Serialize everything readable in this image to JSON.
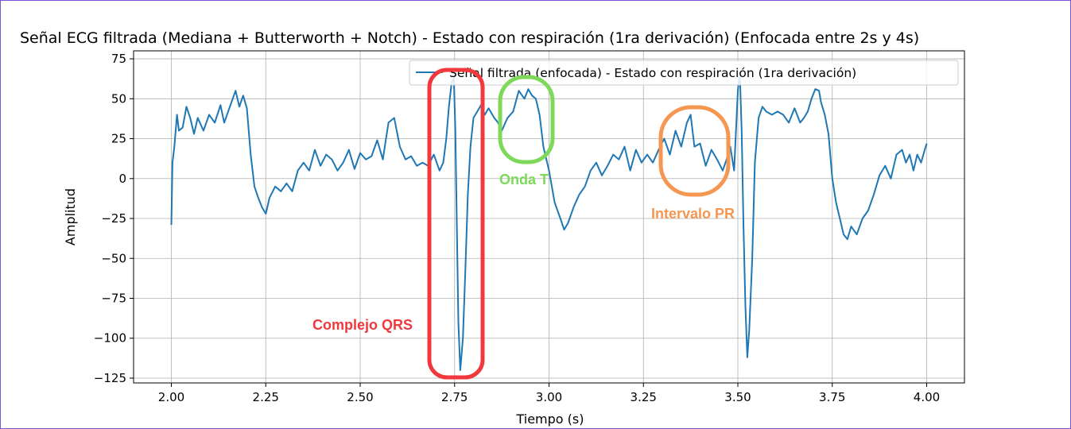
{
  "chart_data": {
    "type": "line",
    "title": "Señal ECG filtrada (Mediana + Butterworth + Notch) - Estado con respiración (1ra derivación) (Enfocada entre 2s y 4s)",
    "xlabel": "Tiempo (s)",
    "ylabel": "Amplitud",
    "xlim": [
      1.9,
      4.1
    ],
    "ylim": [
      -128,
      80
    ],
    "xticks": [
      "2.00",
      "2.25",
      "2.50",
      "2.75",
      "3.00",
      "3.25",
      "3.50",
      "3.75",
      "4.00"
    ],
    "yticks": [
      "75",
      "50",
      "25",
      "0",
      "−25",
      "−50",
      "−75",
      "−100",
      "−125"
    ],
    "grid": true,
    "legend_position": "top-right",
    "series": [
      {
        "name": "Señal filtrada (enfocada) - Estado con respiración (1ra derivación)",
        "color": "#1f77b4",
        "points": [
          [
            2.0,
            -29
          ],
          [
            2.003,
            10
          ],
          [
            2.008,
            20
          ],
          [
            2.015,
            40
          ],
          [
            2.02,
            30
          ],
          [
            2.03,
            32
          ],
          [
            2.04,
            45
          ],
          [
            2.05,
            38
          ],
          [
            2.06,
            28
          ],
          [
            2.07,
            38
          ],
          [
            2.085,
            30
          ],
          [
            2.1,
            40
          ],
          [
            2.115,
            35
          ],
          [
            2.13,
            46
          ],
          [
            2.14,
            35
          ],
          [
            2.155,
            45
          ],
          [
            2.17,
            55
          ],
          [
            2.18,
            45
          ],
          [
            2.19,
            52
          ],
          [
            2.2,
            44
          ],
          [
            2.21,
            15
          ],
          [
            2.22,
            -5
          ],
          [
            2.23,
            -12
          ],
          [
            2.24,
            -18
          ],
          [
            2.25,
            -22
          ],
          [
            2.26,
            -12
          ],
          [
            2.275,
            -5
          ],
          [
            2.29,
            -8
          ],
          [
            2.305,
            -3
          ],
          [
            2.32,
            -8
          ],
          [
            2.335,
            5
          ],
          [
            2.35,
            10
          ],
          [
            2.365,
            5
          ],
          [
            2.38,
            18
          ],
          [
            2.395,
            8
          ],
          [
            2.41,
            15
          ],
          [
            2.425,
            12
          ],
          [
            2.44,
            5
          ],
          [
            2.455,
            10
          ],
          [
            2.47,
            18
          ],
          [
            2.485,
            6
          ],
          [
            2.5,
            16
          ],
          [
            2.515,
            12
          ],
          [
            2.53,
            14
          ],
          [
            2.545,
            24
          ],
          [
            2.56,
            12
          ],
          [
            2.575,
            35
          ],
          [
            2.59,
            38
          ],
          [
            2.605,
            20
          ],
          [
            2.62,
            12
          ],
          [
            2.635,
            14
          ],
          [
            2.65,
            8
          ],
          [
            2.665,
            10
          ],
          [
            2.68,
            8
          ],
          [
            2.695,
            15
          ],
          [
            2.71,
            5
          ],
          [
            2.72,
            10
          ],
          [
            2.728,
            25
          ],
          [
            2.735,
            45
          ],
          [
            2.742,
            60
          ],
          [
            2.748,
            63
          ],
          [
            2.752,
            30
          ],
          [
            2.756,
            -30
          ],
          [
            2.76,
            -90
          ],
          [
            2.765,
            -120
          ],
          [
            2.772,
            -100
          ],
          [
            2.778,
            -60
          ],
          [
            2.785,
            -10
          ],
          [
            2.792,
            20
          ],
          [
            2.8,
            38
          ],
          [
            2.81,
            42
          ],
          [
            2.82,
            46
          ],
          [
            2.83,
            40
          ],
          [
            2.84,
            44
          ],
          [
            2.855,
            38
          ],
          [
            2.865,
            35
          ],
          [
            2.875,
            30
          ],
          [
            2.89,
            38
          ],
          [
            2.905,
            42
          ],
          [
            2.92,
            55
          ],
          [
            2.935,
            50
          ],
          [
            2.945,
            56
          ],
          [
            2.955,
            52
          ],
          [
            2.965,
            50
          ],
          [
            2.975,
            40
          ],
          [
            2.985,
            20
          ],
          [
            3.0,
            5
          ],
          [
            3.015,
            -15
          ],
          [
            3.03,
            -25
          ],
          [
            3.04,
            -32
          ],
          [
            3.05,
            -28
          ],
          [
            3.065,
            -18
          ],
          [
            3.08,
            -10
          ],
          [
            3.095,
            -5
          ],
          [
            3.11,
            5
          ],
          [
            3.125,
            10
          ],
          [
            3.14,
            2
          ],
          [
            3.155,
            8
          ],
          [
            3.17,
            15
          ],
          [
            3.185,
            12
          ],
          [
            3.2,
            20
          ],
          [
            3.215,
            5
          ],
          [
            3.23,
            18
          ],
          [
            3.245,
            10
          ],
          [
            3.26,
            15
          ],
          [
            3.275,
            10
          ],
          [
            3.29,
            18
          ],
          [
            3.305,
            25
          ],
          [
            3.32,
            15
          ],
          [
            3.335,
            30
          ],
          [
            3.35,
            20
          ],
          [
            3.365,
            35
          ],
          [
            3.375,
            40
          ],
          [
            3.385,
            20
          ],
          [
            3.4,
            22
          ],
          [
            3.415,
            8
          ],
          [
            3.43,
            18
          ],
          [
            3.445,
            12
          ],
          [
            3.46,
            5
          ],
          [
            3.47,
            12
          ],
          [
            3.48,
            20
          ],
          [
            3.49,
            5
          ],
          [
            3.5,
            55
          ],
          [
            3.505,
            67
          ],
          [
            3.51,
            30
          ],
          [
            3.515,
            -30
          ],
          [
            3.52,
            -80
          ],
          [
            3.525,
            -112
          ],
          [
            3.53,
            -95
          ],
          [
            3.538,
            -50
          ],
          [
            3.545,
            10
          ],
          [
            3.555,
            38
          ],
          [
            3.565,
            45
          ],
          [
            3.575,
            42
          ],
          [
            3.59,
            40
          ],
          [
            3.605,
            42
          ],
          [
            3.62,
            40
          ],
          [
            3.635,
            35
          ],
          [
            3.65,
            44
          ],
          [
            3.665,
            35
          ],
          [
            3.675,
            38
          ],
          [
            3.685,
            42
          ],
          [
            3.695,
            50
          ],
          [
            3.705,
            56
          ],
          [
            3.715,
            55
          ],
          [
            3.72,
            48
          ],
          [
            3.73,
            40
          ],
          [
            3.74,
            28
          ],
          [
            3.75,
            0
          ],
          [
            3.76,
            -15
          ],
          [
            3.77,
            -25
          ],
          [
            3.78,
            -35
          ],
          [
            3.79,
            -38
          ],
          [
            3.8,
            -30
          ],
          [
            3.815,
            -35
          ],
          [
            3.83,
            -25
          ],
          [
            3.845,
            -20
          ],
          [
            3.86,
            -10
          ],
          [
            3.875,
            2
          ],
          [
            3.89,
            8
          ],
          [
            3.905,
            0
          ],
          [
            3.92,
            15
          ],
          [
            3.935,
            18
          ],
          [
            3.945,
            10
          ],
          [
            3.955,
            15
          ],
          [
            3.965,
            5
          ],
          [
            3.975,
            15
          ],
          [
            3.985,
            10
          ],
          [
            3.995,
            18
          ],
          [
            4.0,
            22
          ]
        ]
      }
    ],
    "annotations": [
      {
        "label": "Complejo QRS",
        "color": "#f1383c"
      },
      {
        "label": "Onda T",
        "color": "#7ed95a"
      },
      {
        "label": "Intervalo PR",
        "color": "#f59651"
      }
    ]
  }
}
